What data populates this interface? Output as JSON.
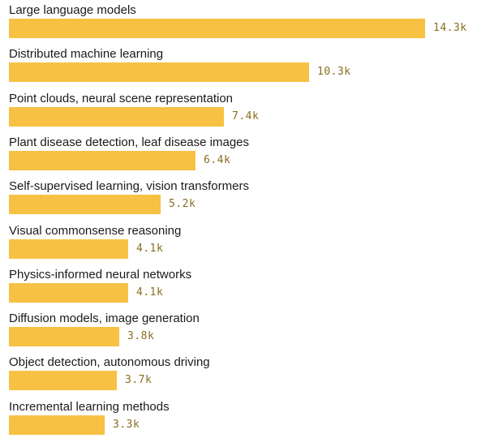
{
  "chart_data": {
    "type": "bar",
    "orientation": "horizontal",
    "categories": [
      "Large language models",
      "Distributed machine learning",
      "Point clouds, neural scene representation",
      "Plant disease detection, leaf disease images",
      "Self-supervised learning, vision transformers",
      "Visual commonsense reasoning",
      "Physics-informed neural networks",
      "Diffusion models, image generation",
      "Object detection, autonomous driving",
      "Incremental learning methods"
    ],
    "values": [
      14.3,
      10.3,
      7.4,
      6.4,
      5.2,
      4.1,
      4.1,
      3.8,
      3.7,
      3.3
    ],
    "value_labels": [
      "14.3k",
      "10.3k",
      "7.4k",
      "6.4k",
      "5.2k",
      "4.1k",
      "4.1k",
      "3.8k",
      "3.7k",
      "3.3k"
    ],
    "bar_color": "#f7c144",
    "value_label_color": "#8a6d1f",
    "title": "",
    "xlabel": "",
    "ylabel": "",
    "xlim": [
      0,
      14.3
    ],
    "grid": false,
    "legend": "none"
  }
}
